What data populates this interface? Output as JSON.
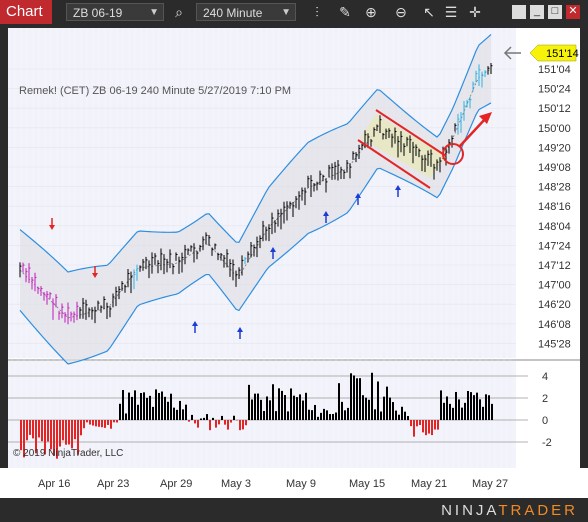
{
  "toolbar": {
    "chart_tab": "Chart",
    "instrument": "ZB 06-19",
    "interval": "240 Minute"
  },
  "chart": {
    "header": "Remek!  (CET)  ZB 06-19  240 Minute  5/27/2019 7:10 PM",
    "price_labels": [
      "151'04",
      "150'24",
      "150'12",
      "150'00",
      "149'20",
      "149'08",
      "148'28",
      "148'16",
      "148'04",
      "147'24",
      "147'12",
      "147'00",
      "146'20",
      "146'08",
      "145'28"
    ],
    "last_price": "151'14",
    "volume_labels": [
      "4",
      "2",
      "0",
      "-2"
    ],
    "copyright": "© 2019 NinjaTrader, LLC",
    "date_labels": [
      "Apr 16",
      "Apr 23",
      "Apr 29",
      "May 3",
      "May 9",
      "May 15",
      "May 21",
      "May 27"
    ]
  },
  "brand": {
    "name_left": "NINJA",
    "name_right": "TRADER"
  },
  "colors": {
    "tab_red": "#c0292e",
    "band_blue": "#2f8fe0",
    "bar_color": "#000000",
    "annotation_red": "#e32525",
    "price_box": "#f6f20a"
  }
}
